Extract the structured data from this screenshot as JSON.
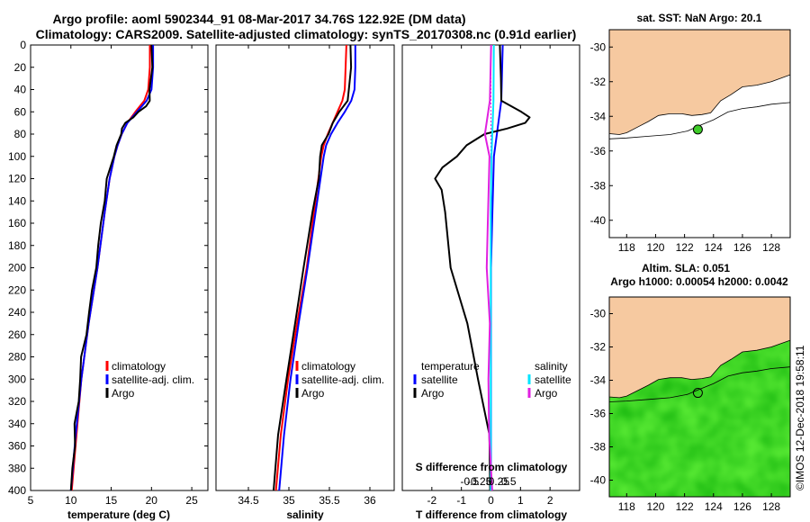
{
  "header": {
    "line1": "Argo profile: aoml 5902344_91 08-Mar-2017 34.76S 122.92E (DM data)",
    "line2": "Climatology: CARS2009. Satellite-adjusted climatology: synTS_20170308.nc (0.91d earlier)"
  },
  "colors": {
    "climatology": "#ff0000",
    "satellite": "#0000ff",
    "argo": "#000000",
    "sal_sat": "#00e5ff",
    "sal_argo": "#e020e0",
    "land": "#f6c9a0",
    "ocean": "#3fcc2a"
  },
  "depth_axis": {
    "ticks": [
      0,
      20,
      40,
      60,
      80,
      100,
      120,
      140,
      160,
      180,
      200,
      220,
      240,
      260,
      280,
      300,
      320,
      340,
      360,
      380,
      400
    ],
    "ylim": [
      0,
      400
    ]
  },
  "chart_data": [
    {
      "type": "line",
      "id": "temperature",
      "xlabel": "temperature (deg C)",
      "ylabel": "depth",
      "xlim": [
        5,
        27
      ],
      "ylim": [
        0,
        400
      ],
      "x_ticks": [
        5,
        10,
        15,
        20,
        25
      ],
      "x_tick_labels": [
        "5",
        "10",
        "15",
        "20",
        "25"
      ],
      "legend": [
        "climatology",
        "satellite-adj. clim.",
        "Argo"
      ],
      "series": [
        {
          "name": "climatology",
          "color": "#ff0000",
          "depth": [
            0,
            20,
            40,
            50,
            60,
            70,
            80,
            90,
            100,
            120,
            150,
            200,
            250,
            300,
            350,
            400
          ],
          "values": [
            19.8,
            19.8,
            19.6,
            19.1,
            18.0,
            17.0,
            16.3,
            15.8,
            15.4,
            14.8,
            14.2,
            13.3,
            12.2,
            11.3,
            10.7,
            10.1
          ]
        },
        {
          "name": "satellite-adj. clim.",
          "color": "#0000ff",
          "depth": [
            0,
            20,
            40,
            50,
            60,
            70,
            80,
            90,
            100,
            120,
            150,
            200,
            250,
            300,
            350,
            400
          ],
          "values": [
            20.2,
            20.2,
            20.0,
            19.4,
            18.2,
            17.0,
            16.3,
            15.8,
            15.4,
            14.8,
            14.2,
            13.3,
            12.2,
            11.3,
            10.6,
            10.0
          ]
        },
        {
          "name": "Argo",
          "color": "#000000",
          "depth": [
            0,
            20,
            40,
            50,
            55,
            60,
            65,
            70,
            75,
            80,
            90,
            100,
            110,
            120,
            140,
            160,
            180,
            200,
            220,
            240,
            260,
            280,
            300,
            320,
            340,
            360,
            380,
            400
          ],
          "values": [
            20.0,
            20.0,
            19.9,
            19.7,
            19.3,
            18.5,
            17.6,
            16.8,
            16.4,
            16.1,
            15.8,
            15.3,
            14.8,
            14.6,
            14.1,
            13.7,
            13.5,
            13.0,
            12.7,
            12.3,
            11.8,
            11.4,
            11.1,
            10.9,
            10.6,
            10.4,
            10.2,
            10.1
          ]
        }
      ]
    },
    {
      "type": "line",
      "id": "salinity",
      "xlabel": "salinity",
      "ylabel": "depth",
      "xlim": [
        34.1,
        36.3
      ],
      "ylim": [
        0,
        400
      ],
      "x_ticks": [
        34.5,
        35,
        35.5,
        36
      ],
      "x_tick_labels": [
        "34.5",
        "35",
        "35.5",
        "36"
      ],
      "legend": [
        "climatology",
        "satellite-adj. clim.",
        "Argo"
      ],
      "series": [
        {
          "name": "climatology",
          "color": "#ff0000",
          "depth": [
            0,
            20,
            40,
            50,
            60,
            70,
            80,
            90,
            100,
            150,
            200,
            250,
            300,
            350,
            400
          ],
          "values": [
            35.71,
            35.7,
            35.69,
            35.66,
            35.6,
            35.54,
            35.48,
            35.43,
            35.4,
            35.31,
            35.22,
            35.1,
            34.99,
            34.9,
            34.84
          ]
        },
        {
          "name": "satellite-adj. clim.",
          "color": "#0000ff",
          "depth": [
            0,
            20,
            40,
            50,
            60,
            70,
            80,
            90,
            100,
            150,
            200,
            250,
            300,
            350,
            400
          ],
          "values": [
            35.82,
            35.82,
            35.81,
            35.77,
            35.69,
            35.6,
            35.52,
            35.46,
            35.43,
            35.33,
            35.23,
            35.12,
            35.02,
            34.94,
            34.88
          ]
        },
        {
          "name": "Argo",
          "color": "#000000",
          "depth": [
            0,
            20,
            40,
            50,
            60,
            70,
            80,
            90,
            100,
            120,
            150,
            200,
            250,
            300,
            350,
            400
          ],
          "values": [
            35.76,
            35.76,
            35.75,
            35.72,
            35.62,
            35.55,
            35.48,
            35.41,
            35.39,
            35.36,
            35.3,
            35.18,
            35.07,
            34.98,
            34.86,
            34.81
          ]
        }
      ]
    },
    {
      "type": "line",
      "id": "differences",
      "xlabel": "T difference from climatology",
      "xlabel_top": "S difference from climatology",
      "xlim": [
        -3,
        3
      ],
      "ylim": [
        0,
        400
      ],
      "x_ticks": [
        -2,
        -1,
        0,
        1,
        2
      ],
      "x_tick_labels": [
        "-2",
        "-1",
        "0",
        "1",
        "2"
      ],
      "s_ticks": [
        -0.5,
        -0.25,
        0,
        0.25,
        0.5
      ],
      "s_tick_labels": [
        "-0.5",
        "-0.25",
        "0",
        "0.25",
        "0.5"
      ],
      "legend_temp": {
        "title": "temperature",
        "items": [
          "satellite",
          "Argo"
        ]
      },
      "legend_sal": {
        "title": "salinity",
        "items": [
          "satellite",
          "Argo"
        ]
      },
      "series": [
        {
          "name": "T satellite",
          "color": "#0000ff",
          "depth": [
            0,
            50,
            100,
            150,
            200,
            250,
            300,
            350,
            400
          ],
          "values": [
            0.4,
            0.35,
            0.1,
            0.05,
            0.0,
            0.0,
            0.0,
            0.0,
            0.0
          ]
        },
        {
          "name": "T Argo",
          "color": "#000000",
          "depth": [
            0,
            30,
            50,
            60,
            65,
            70,
            75,
            80,
            90,
            100,
            110,
            120,
            130,
            150,
            200,
            250,
            300,
            350,
            400
          ],
          "values": [
            0.3,
            0.3,
            0.4,
            1.0,
            1.3,
            1.2,
            0.5,
            -0.2,
            -0.8,
            -1.2,
            -1.6,
            -1.9,
            -1.7,
            -1.5,
            -1.4,
            -0.8,
            -0.4,
            -0.1,
            0.0
          ]
        },
        {
          "name": "S satellite",
          "color": "#00e5ff",
          "depth": [
            0,
            50,
            100,
            150,
            200,
            250,
            300,
            350,
            400
          ],
          "values": [
            0.12,
            0.11,
            0.06,
            0.04,
            0.04,
            0.04,
            0.04,
            0.04,
            0.04
          ]
        },
        {
          "name": "S Argo",
          "color": "#e020e0",
          "depth": [
            0,
            50,
            80,
            100,
            150,
            200,
            250,
            300,
            350,
            400
          ],
          "values": [
            0.05,
            -0.02,
            -0.06,
            -0.02,
            -0.04,
            -0.02,
            -0.03,
            0.0,
            0.02,
            0.03
          ]
        }
      ]
    },
    {
      "type": "heatmap",
      "id": "map-sst",
      "title": "sat. SST: NaN Argo: 20.1",
      "x_ticks": [
        118,
        120,
        122,
        124,
        126,
        128
      ],
      "y_ticks": [
        -30,
        -32,
        -34,
        -36,
        -38,
        -40
      ],
      "xlim": [
        116.8,
        129.3
      ],
      "ylim": [
        -41.0,
        -29.0
      ],
      "argo_lon": 122.92,
      "argo_lat": -34.76
    },
    {
      "type": "heatmap",
      "id": "map-sla",
      "title": "Altim. SLA: 0.051",
      "subtitle": "Argo h1000: 0.00054 h2000: 0.0042",
      "x_ticks": [
        118,
        120,
        122,
        124,
        126,
        128
      ],
      "y_ticks": [
        -30,
        -32,
        -34,
        -36,
        -38,
        -40
      ],
      "xlim": [
        116.8,
        129.3
      ],
      "ylim": [
        -41.0,
        -29.0
      ],
      "argo_lon": 122.92,
      "argo_lat": -34.76
    }
  ],
  "watermark": "©IMOS 12-Dec-2018 19:58:11"
}
